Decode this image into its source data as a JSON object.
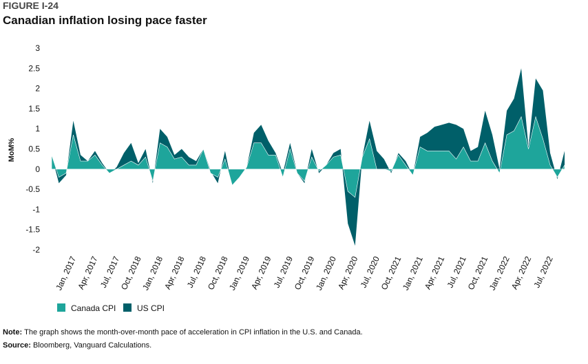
{
  "figure_label": "FIGURE I-24",
  "note_label": "Note:",
  "note_text": "The graph shows the month-over-month pace of acceleration in CPI inflation in the U.S. and Canada.",
  "source_label": "Source:",
  "source_text": "Bloomberg, Vanguard Calculations.",
  "chart_data": {
    "type": "area",
    "title": "Canadian inflation losing pace faster",
    "y_label": "MoM%",
    "categories": [
      null,
      null,
      null,
      "Jan, 2017",
      null,
      null,
      "Apr, 2017",
      null,
      null,
      "Jul, 2017",
      null,
      null,
      "Oct, 2018",
      null,
      null,
      "Jan, 2018",
      null,
      null,
      "Apr, 2018",
      null,
      null,
      "Jul, 2018",
      null,
      null,
      "Oct, 2018",
      null,
      null,
      "Jan, 2019",
      null,
      null,
      "Apr, 2019",
      null,
      null,
      "Jul, 2019",
      null,
      null,
      "Oct, 2019",
      null,
      null,
      "Jan, 2020",
      null,
      null,
      "Apr, 2020",
      null,
      null,
      "Jul, 2020",
      null,
      null,
      "Oct, 2021",
      null,
      null,
      "Jan, 2021",
      null,
      null,
      "Apr, 2021",
      null,
      null,
      "Jul, 2021",
      null,
      null,
      "Oct, 2021",
      null,
      null,
      "Jan, 2022",
      null,
      null,
      "Apr, 2022",
      null,
      null,
      "Jul, 2022",
      null,
      null
    ],
    "series": [
      {
        "name": "US CPI",
        "color": "#005f69",
        "values": [
          0.35,
          -0.35,
          -0.15,
          1.2,
          0.35,
          0.2,
          0.45,
          0.15,
          -0.1,
          0.05,
          0.4,
          0.65,
          0.15,
          0.5,
          -0.35,
          1.0,
          0.8,
          0.35,
          0.5,
          0.3,
          0.2,
          0.5,
          -0.05,
          -0.35,
          0.45,
          -0.4,
          -0.2,
          0.05,
          0.9,
          1.1,
          0.7,
          0.4,
          -0.1,
          0.65,
          -0.1,
          -0.35,
          0.5,
          -0.1,
          0.1,
          0.4,
          0.5,
          -1.35,
          -1.9,
          0.3,
          1.2,
          0.45,
          0.25,
          -0.1,
          0.4,
          0.2,
          -0.15,
          0.8,
          0.9,
          1.05,
          1.1,
          1.15,
          1.1,
          1.0,
          0.45,
          0.55,
          1.45,
          0.85,
          0.0,
          1.45,
          1.75,
          2.5,
          0.55,
          2.25,
          1.95,
          0.4,
          -0.25,
          0.45
        ]
      },
      {
        "name": "Canada CPI",
        "color": "#1ea59b",
        "values": [
          0.35,
          -0.2,
          -0.1,
          0.85,
          0.2,
          0.2,
          0.35,
          0.1,
          -0.1,
          0.0,
          0.1,
          0.2,
          0.1,
          0.3,
          -0.3,
          0.65,
          0.55,
          0.25,
          0.3,
          0.1,
          0.1,
          0.5,
          -0.1,
          -0.2,
          0.25,
          -0.4,
          -0.2,
          0.05,
          0.65,
          0.65,
          0.35,
          0.35,
          -0.2,
          0.5,
          -0.1,
          -0.3,
          0.3,
          -0.05,
          0.1,
          0.3,
          0.35,
          -0.55,
          -0.7,
          0.3,
          0.75,
          0.0,
          0.0,
          -0.05,
          0.35,
          0.1,
          -0.15,
          0.55,
          0.45,
          0.45,
          0.45,
          0.45,
          0.25,
          0.55,
          0.2,
          0.2,
          0.65,
          0.2,
          -0.1,
          0.85,
          0.95,
          1.3,
          0.5,
          1.3,
          0.75,
          0.1,
          -0.2,
          0.1
        ]
      }
    ],
    "legend_order": [
      "Canada CPI",
      "US CPI"
    ],
    "ylim": [
      -2,
      3
    ],
    "yticks": [
      -2,
      -1.5,
      -1,
      -0.5,
      0,
      0.5,
      1,
      1.5,
      2,
      2.5,
      3
    ],
    "grid": false
  }
}
